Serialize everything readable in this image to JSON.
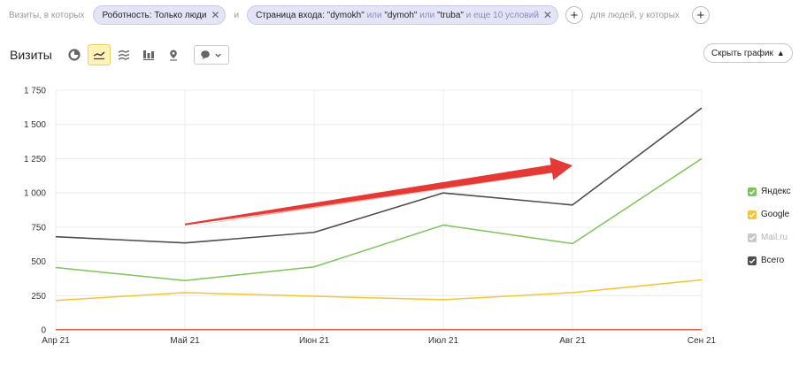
{
  "filters": {
    "prefix": "Визиты, в которых",
    "chip1": "Роботность: Только люди",
    "joiner": "и",
    "chip2": {
      "lead": "Страница входа: \"dymokh\"",
      "or1": "или",
      "mid": "\"dymoh\"",
      "or2": "или",
      "last": "\"truba\"",
      "more": "и еще 10 условий"
    },
    "suffix": "для людей, у которых"
  },
  "toolbar": {
    "title": "Визиты",
    "hide_chart": "Скрыть график",
    "icons": [
      "pie-chart-icon",
      "line-chart-icon",
      "area-chart-icon",
      "bar-chart-icon",
      "map-icon"
    ]
  },
  "chart_data": {
    "type": "line",
    "x": [
      "Апр 21",
      "Май 21",
      "Июн 21",
      "Июл 21",
      "Авг 21",
      "Сен 21"
    ],
    "ylim": [
      0,
      1750
    ],
    "yticks": [
      0,
      250,
      500,
      750,
      1000,
      1250,
      1500,
      1750
    ],
    "ytick_labels": [
      "0",
      "250",
      "500",
      "750",
      "1 000",
      "1 250",
      "1 500",
      "1 750"
    ],
    "grid": true,
    "legend": "right",
    "series": [
      {
        "name": "Яндекс",
        "color": "#7dc35b",
        "values": [
          455,
          360,
          460,
          765,
          630,
          1250
        ]
      },
      {
        "name": "Google",
        "color": "#f6c534",
        "values": [
          215,
          272,
          245,
          220,
          272,
          365
        ]
      },
      {
        "name": "Mail.ru",
        "color": "#e45a3e",
        "values": [
          2,
          2,
          2,
          2,
          2,
          2
        ],
        "dimmed": true
      },
      {
        "name": "Всего",
        "color": "#4d4d4d",
        "values": [
          680,
          635,
          712,
          1000,
          912,
          1620
        ]
      }
    ],
    "annotation": {
      "type": "arrow",
      "color": "#e53935",
      "from": [
        "Май 21",
        770
      ],
      "to": [
        "Авг 21",
        1200
      ]
    }
  }
}
